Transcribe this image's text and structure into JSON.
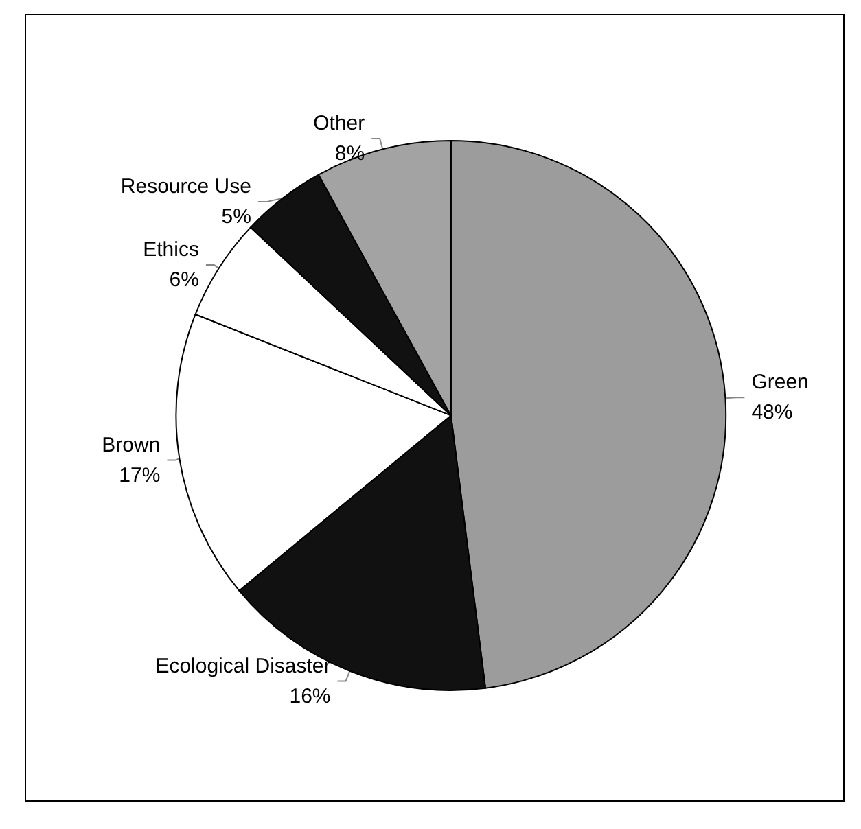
{
  "chart_data": {
    "type": "pie",
    "categories": [
      "Green",
      "Ecological Disaster",
      "Brown",
      "Ethics",
      "Resource Use",
      "Other"
    ],
    "values": [
      48,
      16,
      17,
      6,
      5,
      8
    ],
    "colors": [
      "#9c9c9c",
      "#111111",
      "#ffffff",
      "#ffffff",
      "#111111",
      "#a3a3a3"
    ],
    "value_labels": [
      "48%",
      "16%",
      "17%",
      "6%",
      "5%",
      "8%"
    ],
    "legend": false
  }
}
